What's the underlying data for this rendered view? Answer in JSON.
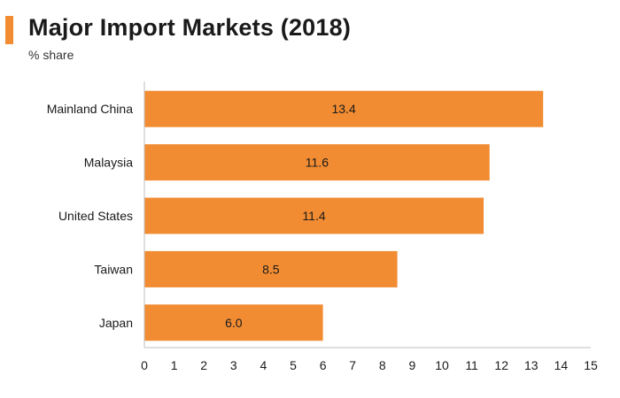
{
  "header": {
    "title": "Major Import Markets (2018)",
    "subtitle": "% share"
  },
  "colors": {
    "accent": "#f28c33",
    "bar": "#f28c33",
    "axis": "#bfbfbf",
    "text": "#1a1a1a"
  },
  "chart_data": {
    "type": "bar",
    "orientation": "horizontal",
    "title": "Major Import Markets (2018)",
    "subtitle": "% share",
    "categories": [
      "Mainland China",
      "Malaysia",
      "United States",
      "Taiwan",
      "Japan"
    ],
    "values": [
      13.4,
      11.6,
      11.4,
      8.5,
      6.0
    ],
    "value_labels": [
      "13.4",
      "11.6",
      "11.4",
      "8.5",
      "6.0"
    ],
    "xlim": [
      0,
      15
    ],
    "xticks": [
      0,
      1,
      2,
      3,
      4,
      5,
      6,
      7,
      8,
      9,
      10,
      11,
      12,
      13,
      14,
      15
    ],
    "xlabel": "",
    "ylabel": "",
    "grid": false,
    "legend": "none"
  }
}
